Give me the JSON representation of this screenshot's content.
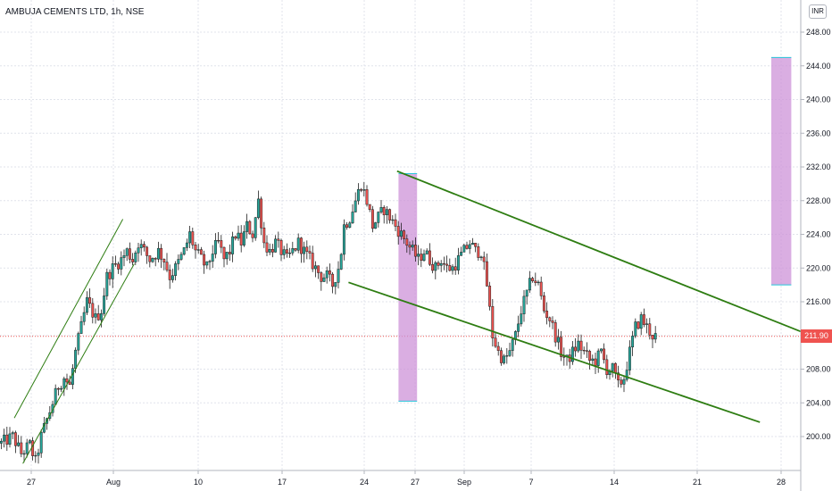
{
  "header": {
    "symbol": "AMBUJA CEMENTS LTD",
    "interval": "1h",
    "exchange": "NSE",
    "title": "AMBUJA CEMENTS LTD, 1h, NSE",
    "currency": "INR"
  },
  "last_price_label": "211.90",
  "colors": {
    "up": "#26a69a",
    "down": "#ef5350",
    "candle_outline": "#1f1f1f",
    "channel": "#2e7d12",
    "box_fill": "#ce93d8",
    "box_edge": "#26c6da",
    "grid": "#e0e3eb",
    "last_price_line": "#ef5350"
  },
  "chart_data": {
    "type": "candlestick",
    "title": "AMBUJA CEMENTS LTD, 1h, NSE",
    "y_axis": {
      "ticks": [
        "200.00",
        "204.00",
        "208.00",
        "212.00",
        "216.00",
        "220.00",
        "224.00",
        "228.00",
        "232.00",
        "236.00",
        "240.00",
        "244.00",
        "248.00"
      ],
      "range": [
        196.0,
        249.5
      ],
      "position": "right"
    },
    "x_axis": {
      "ticks": [
        "27",
        "Aug",
        "10",
        "17",
        "24",
        "27",
        "Sep",
        "7",
        "14",
        "21",
        "28"
      ]
    },
    "grid": true,
    "last_price": 211.9,
    "close_path": [
      [
        0,
        199.2
      ],
      [
        4,
        200
      ],
      [
        7,
        198
      ],
      [
        10,
        199
      ],
      [
        12,
        197
      ],
      [
        14,
        200
      ],
      [
        17,
        203
      ],
      [
        20,
        206
      ],
      [
        22,
        207
      ],
      [
        24,
        206
      ],
      [
        26,
        210
      ],
      [
        28,
        213
      ],
      [
        30,
        216
      ],
      [
        33,
        214
      ],
      [
        35,
        215
      ],
      [
        37,
        219
      ],
      [
        39,
        220
      ],
      [
        42,
        221
      ],
      [
        44,
        222
      ],
      [
        46,
        221
      ],
      [
        48,
        223
      ],
      [
        50,
        222
      ],
      [
        52,
        221
      ],
      [
        55,
        222
      ],
      [
        57,
        221
      ],
      [
        59,
        219
      ],
      [
        61,
        220
      ],
      [
        64,
        222
      ],
      [
        66,
        224
      ],
      [
        68,
        222
      ],
      [
        70,
        221
      ],
      [
        72,
        220
      ],
      [
        74,
        222
      ],
      [
        76,
        223
      ],
      [
        78,
        221
      ],
      [
        80,
        222
      ],
      [
        82,
        224
      ],
      [
        84,
        223
      ],
      [
        86,
        225
      ],
      [
        88,
        224
      ],
      [
        90,
        228
      ],
      [
        92,
        223
      ],
      [
        94,
        222
      ],
      [
        96,
        223
      ],
      [
        98,
        222
      ],
      [
        100,
        221
      ],
      [
        102,
        222
      ],
      [
        104,
        223
      ],
      [
        106,
        222
      ],
      [
        108,
        221
      ],
      [
        110,
        220
      ],
      [
        112,
        219
      ],
      [
        114,
        219
      ],
      [
        116,
        218
      ],
      [
        118,
        220
      ],
      [
        119,
        222
      ],
      [
        120,
        225
      ],
      [
        122,
        226
      ],
      [
        124,
        228
      ],
      [
        126,
        230
      ],
      [
        128,
        228
      ],
      [
        130,
        225
      ],
      [
        132,
        226
      ],
      [
        134,
        227
      ],
      [
        136,
        226
      ],
      [
        138,
        225
      ],
      [
        140,
        224
      ],
      [
        142,
        223
      ],
      [
        144,
        222
      ],
      [
        146,
        221
      ],
      [
        148,
        222
      ],
      [
        150,
        221
      ],
      [
        152,
        220
      ],
      [
        154,
        221
      ],
      [
        156,
        220
      ],
      [
        158,
        220
      ],
      [
        160,
        221
      ],
      [
        162,
        222
      ],
      [
        164,
        223
      ],
      [
        166,
        222
      ],
      [
        168,
        222
      ],
      [
        170,
        218
      ],
      [
        172,
        212
      ],
      [
        174,
        210
      ],
      [
        176,
        209
      ],
      [
        178,
        210
      ],
      [
        180,
        212
      ],
      [
        182,
        215
      ],
      [
        184,
        217
      ],
      [
        186,
        219
      ],
      [
        188,
        218
      ],
      [
        190,
        215
      ],
      [
        192,
        214
      ],
      [
        194,
        212
      ],
      [
        196,
        210
      ],
      [
        198,
        209
      ],
      [
        200,
        210
      ],
      [
        202,
        211
      ],
      [
        204,
        210
      ],
      [
        206,
        209
      ],
      [
        208,
        209
      ],
      [
        210,
        210
      ],
      [
        212,
        208
      ],
      [
        214,
        208
      ],
      [
        216,
        206
      ],
      [
        218,
        207
      ],
      [
        220,
        210
      ],
      [
        222,
        213
      ],
      [
        224,
        214
      ],
      [
        226,
        213
      ],
      [
        228,
        212
      ],
      [
        229,
        211.9
      ]
    ],
    "n_candles": 230,
    "overlays": {
      "ascending_channel": {
        "upper": [
          [
            5,
            202.2
          ],
          [
            43,
            225.8
          ]
        ],
        "lower": [
          [
            8,
            196.8
          ],
          [
            47,
            220.5
          ]
        ]
      },
      "descending_channel": {
        "upper": [
          [
            139,
            231.5
          ],
          [
            286,
            211.7
          ]
        ],
        "lower": [
          [
            122,
            218.3
          ],
          [
            266,
            201.7
          ]
        ]
      },
      "range_boxes": [
        {
          "x": [
            139.5,
            146
          ],
          "y": [
            204.2,
            231.2
          ]
        },
        {
          "x": [
            270,
            277
          ],
          "y": [
            218,
            245
          ]
        }
      ]
    }
  }
}
